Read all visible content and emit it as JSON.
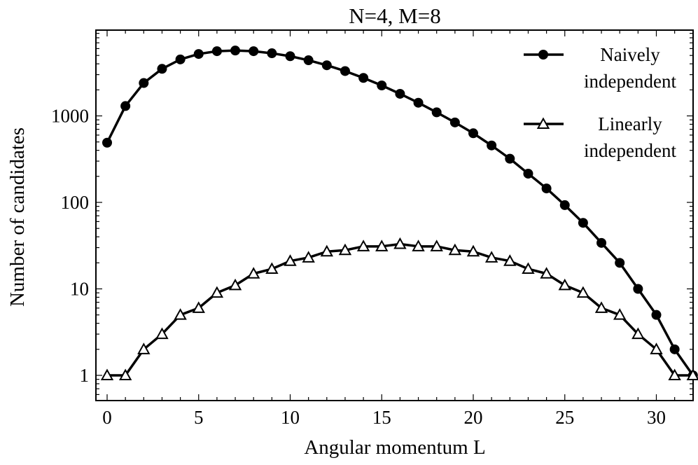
{
  "chart_data": {
    "type": "line",
    "title": "N=4, M=8",
    "xlabel": "Angular momentum L",
    "ylabel": "Number of candidates",
    "xlim": [
      -0.6,
      32.6
    ],
    "ylim": [
      0.5,
      12000
    ],
    "yscale": "log",
    "xticks": [
      0,
      5,
      10,
      15,
      20,
      25,
      30
    ],
    "yticks": [
      1,
      10,
      100,
      1000
    ],
    "ytick_labels": [
      "1",
      "10",
      "100",
      "1000"
    ],
    "grid": false,
    "legend_position": "top-right",
    "x": [
      0,
      1,
      2,
      3,
      4,
      5,
      6,
      7,
      8,
      9,
      10,
      11,
      12,
      13,
      14,
      15,
      16,
      17,
      18,
      19,
      20,
      21,
      22,
      23,
      24,
      25,
      26,
      27,
      28,
      29,
      30,
      31,
      32
    ],
    "series": [
      {
        "name": "Naively\nindependent",
        "marker": "filled-circle",
        "color": "#000000",
        "values": [
          490,
          1300,
          2400,
          3500,
          4500,
          5200,
          5600,
          5700,
          5600,
          5300,
          4900,
          4400,
          3850,
          3300,
          2750,
          2250,
          1800,
          1420,
          1100,
          840,
          630,
          455,
          320,
          215,
          145,
          93,
          58,
          34,
          20,
          10,
          5,
          2,
          1
        ]
      },
      {
        "name": "Linearly\nindependent",
        "marker": "open-triangle",
        "color": "#000000",
        "values": [
          1,
          1,
          2,
          3,
          5,
          6,
          9,
          11,
          15,
          17,
          21,
          23,
          27,
          28,
          31,
          31,
          33,
          31,
          31,
          28,
          27,
          23,
          21,
          17,
          15,
          11,
          9,
          6,
          5,
          3,
          2,
          1,
          1
        ]
      }
    ]
  }
}
